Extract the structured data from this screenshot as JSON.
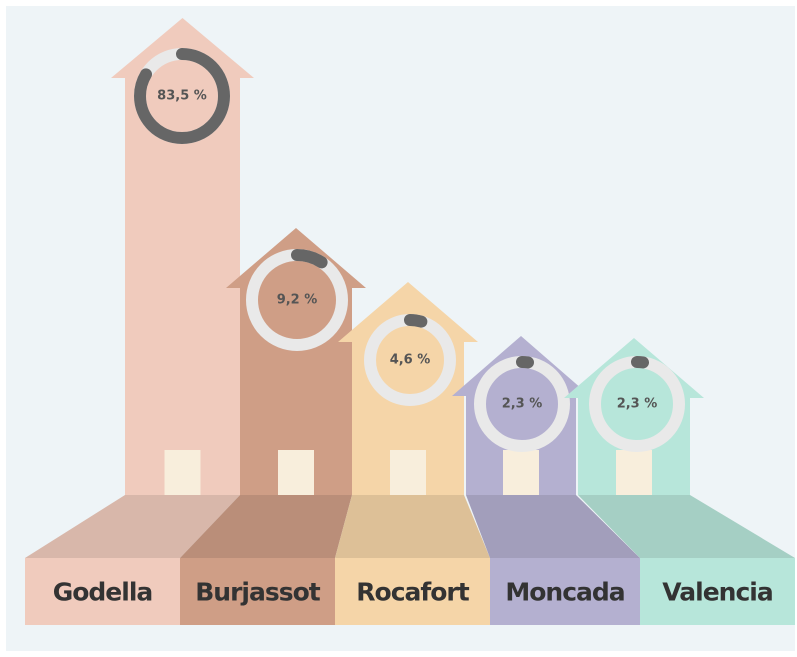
{
  "chart_data": {
    "type": "house-donut",
    "categories": [
      "Godella",
      "Burjassot",
      "Rocafort",
      "Moncada",
      "Valencia"
    ],
    "values": [
      83.5,
      9.2,
      4.6,
      2.3,
      2.3
    ],
    "value_labels": [
      "83,5 %",
      "9,2 %",
      "4,6 %",
      "2,3 %",
      "2,3 %"
    ],
    "colors": [
      "#f0cbbd",
      "#cf9e86",
      "#f5d5a8",
      "#b4b0d0",
      "#b7e6da"
    ],
    "ring_color": "#666666",
    "ylim": [
      0,
      100
    ]
  }
}
